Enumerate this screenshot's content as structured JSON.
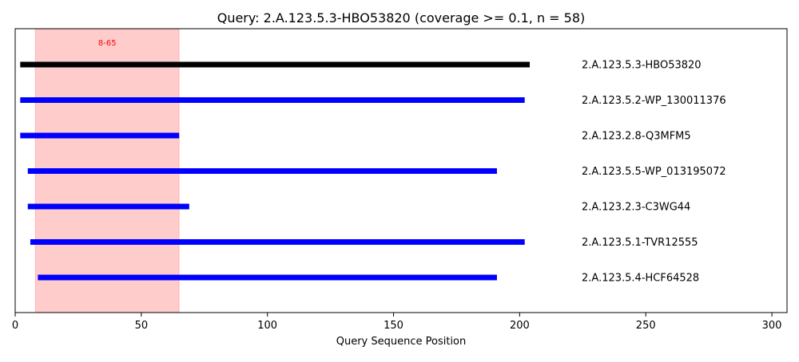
{
  "chart_data": {
    "type": "segments",
    "title": "Query: 2.A.123.5.3-HBO53820 (coverage >= 0.1, n = 58)",
    "xlabel": "Query Sequence Position",
    "ylabel": "",
    "xlim": [
      0,
      306
    ],
    "xticks": [
      0,
      50,
      100,
      150,
      200,
      250,
      300
    ],
    "grid": false,
    "highlight_region": {
      "start": 8,
      "end": 65,
      "label": "8-65",
      "color": "#ff0000"
    },
    "query_color": "#000000",
    "hit_color": "#0000ff",
    "segments": [
      {
        "label": "2.A.123.5.3-HBO53820",
        "start": 2,
        "end": 204,
        "is_query": true
      },
      {
        "label": "2.A.123.5.2-WP_130011376",
        "start": 2,
        "end": 202,
        "is_query": false
      },
      {
        "label": "2.A.123.2.8-Q3MFM5",
        "start": 2,
        "end": 65,
        "is_query": false
      },
      {
        "label": "2.A.123.5.5-WP_013195072",
        "start": 5,
        "end": 191,
        "is_query": false
      },
      {
        "label": "2.A.123.2.3-C3WG44",
        "start": 5,
        "end": 69,
        "is_query": false
      },
      {
        "label": "2.A.123.5.1-TVR12555",
        "start": 6,
        "end": 202,
        "is_query": false
      },
      {
        "label": "2.A.123.5.4-HCF64528",
        "start": 9,
        "end": 191,
        "is_query": false
      }
    ]
  }
}
